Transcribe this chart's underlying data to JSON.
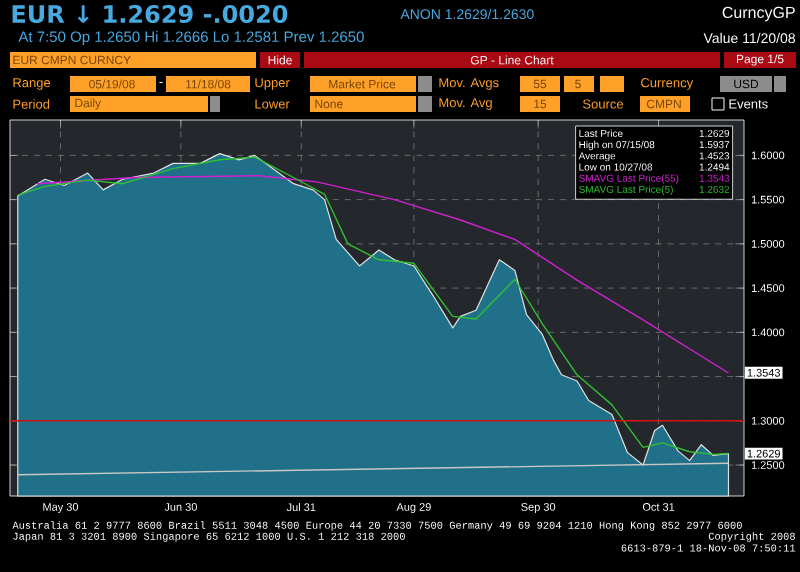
{
  "chart_data": {
    "type": "line",
    "title": "EUR ↓ 1.2629 -.0020",
    "subtitle": "At 7:50 Op 1.2650 Hi 1.2666 Lo 1.2581 Prev 1.2650",
    "xlim": [
      "2008-05-17",
      "2008-11-22"
    ],
    "xticks": [
      {
        "value": "2008-05-30",
        "label": "May 30"
      },
      {
        "value": "2008-06-30",
        "label": "Jun 30"
      },
      {
        "value": "2008-07-31",
        "label": "Jul 31"
      },
      {
        "value": "2008-08-29",
        "label": "Aug 29"
      },
      {
        "value": "2008-09-30",
        "label": "Sep 30"
      },
      {
        "value": "2008-10-31",
        "label": "Oct 31"
      }
    ],
    "ylim": [
      1.215,
      1.64
    ],
    "yticks": [
      {
        "value": 1.25,
        "label": "1.2500"
      },
      {
        "value": 1.3,
        "label": "1.3000"
      },
      {
        "value": 1.35,
        "label": null
      },
      {
        "value": 1.4,
        "label": "1.4000"
      },
      {
        "value": 1.45,
        "label": "1.4500"
      },
      {
        "value": 1.5,
        "label": "1.5000"
      },
      {
        "value": 1.55,
        "label": "1.5500"
      },
      {
        "value": 1.6,
        "label": "1.6000"
      }
    ],
    "grid": true,
    "legend": "top right",
    "ref_lines": [
      {
        "axis": "y",
        "value": 1.3,
        "color": "#d01010"
      }
    ],
    "series": [
      {
        "name": "Last Price",
        "type": "area",
        "color": "#1f7088",
        "x": [
          "2008-05-19",
          "2008-05-26",
          "2008-05-31",
          "2008-06-06",
          "2008-06-10",
          "2008-06-15",
          "2008-06-23",
          "2008-06-28",
          "2008-07-05",
          "2008-07-10",
          "2008-07-15",
          "2008-07-19",
          "2008-07-24",
          "2008-07-29",
          "2008-08-03",
          "2008-08-06",
          "2008-08-09",
          "2008-08-15",
          "2008-08-20",
          "2008-08-24",
          "2008-08-29",
          "2008-09-03",
          "2008-09-08",
          "2008-09-10",
          "2008-09-14",
          "2008-09-20",
          "2008-09-24",
          "2008-09-27",
          "2008-10-01",
          "2008-10-04",
          "2008-10-06",
          "2008-10-10",
          "2008-10-13",
          "2008-10-19",
          "2008-10-23",
          "2008-10-27",
          "2008-10-30",
          "2008-11-01",
          "2008-11-05",
          "2008-11-08",
          "2008-11-11",
          "2008-11-14",
          "2008-11-18"
        ],
        "values": [
          1.554,
          1.573,
          1.566,
          1.58,
          1.561,
          1.573,
          1.58,
          1.591,
          1.591,
          1.602,
          1.595,
          1.6,
          1.584,
          1.568,
          1.561,
          1.55,
          1.505,
          1.475,
          1.493,
          1.482,
          1.475,
          1.441,
          1.405,
          1.418,
          1.425,
          1.482,
          1.47,
          1.42,
          1.398,
          1.368,
          1.352,
          1.345,
          1.323,
          1.307,
          1.264,
          1.25,
          1.289,
          1.295,
          1.266,
          1.255,
          1.273,
          1.261,
          1.263
        ]
      },
      {
        "name": "SMAVG Last Price(55)",
        "type": "line",
        "color": "#d020d0",
        "x": [
          "2008-05-24",
          "2008-06-18",
          "2008-07-20",
          "2008-08-04",
          "2008-08-24",
          "2008-09-10",
          "2008-09-24",
          "2008-10-10",
          "2008-10-27",
          "2008-11-18"
        ],
        "values": [
          1.568,
          1.575,
          1.577,
          1.57,
          1.55,
          1.527,
          1.505,
          1.459,
          1.414,
          1.354
        ]
      },
      {
        "name": "SMAVG Last Price(5)",
        "type": "line",
        "color": "#30c030",
        "x": [
          "2008-05-19",
          "2008-05-26",
          "2008-06-06",
          "2008-06-15",
          "2008-06-28",
          "2008-07-10",
          "2008-07-19",
          "2008-07-29",
          "2008-08-06",
          "2008-08-12",
          "2008-08-20",
          "2008-08-29",
          "2008-09-08",
          "2008-09-14",
          "2008-09-24",
          "2008-10-01",
          "2008-10-10",
          "2008-10-19",
          "2008-10-27",
          "2008-11-01",
          "2008-11-08",
          "2008-11-14",
          "2008-11-18"
        ],
        "values": [
          1.555,
          1.565,
          1.572,
          1.568,
          1.585,
          1.595,
          1.598,
          1.575,
          1.556,
          1.5,
          1.482,
          1.478,
          1.418,
          1.415,
          1.46,
          1.41,
          1.352,
          1.318,
          1.27,
          1.275,
          1.265,
          1.262,
          1.263
        ]
      },
      {
        "type": "line",
        "color": "#c8c8c8",
        "x": [
          "2008-05-19",
          "2008-11-18"
        ],
        "values": [
          1.239,
          1.252
        ]
      }
    ],
    "annotations": [
      "ANON 1.2629/1.2630",
      "CurncyGP",
      "Value 11/20/08",
      "EUR CMPN CURNCY",
      "Hide",
      "GP - Line Chart",
      "Page 1/5",
      "Range",
      "05/19/08",
      "-",
      "11/18/08",
      "Upper",
      "Market Price",
      "Mov. Avgs",
      "55",
      "5",
      "Currency",
      "USD",
      "Period",
      "Daily",
      "Lower",
      "None",
      "Mov. Avg",
      "15",
      "Source",
      "CMPN",
      "Events",
      "1.2629",
      "High on 07/15/08",
      "1.5937",
      "Average",
      "1.4523",
      "Low on 10/27/08",
      "1.2494",
      "1.3543",
      "1.2632",
      "Australia 61 2 9777 8600 Brazil 5511 3048 4500 Europe 44 20 7330 7500 Germany 49 69 9204 1210 Hong Kong 852 2977 6000",
      "Japan 81 3 3201 8900 Singapore 65 6212 1000 U.S. 1 212 318 2000",
      "Copyright 2008",
      "6613-879-1 18-Nov-08 7:50:11",
      {
        "text": "1.3543",
        "x": "2008-11-18",
        "y": 1.3543
      },
      {
        "text": "1.2629",
        "x": "2008-11-18",
        "y": 1.2629
      }
    ]
  }
}
